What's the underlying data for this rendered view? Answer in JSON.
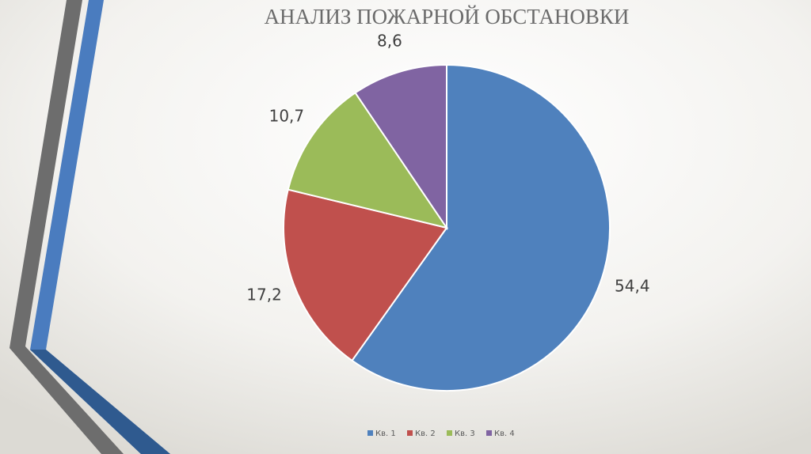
{
  "chart_data": {
    "type": "pie",
    "title": "АНАЛИЗ ПОЖАРНОЙ ОБСТАНОВКИ",
    "categories": [
      "Кв. 1",
      "Кв. 2",
      "Кв. 3",
      "Кв. 4"
    ],
    "values": [
      54.4,
      17.2,
      10.7,
      8.6
    ],
    "value_labels": [
      "54,4",
      "17,2",
      "10,7",
      "8,6"
    ],
    "colors": [
      "#4f81bd",
      "#c0504d",
      "#9bbb59",
      "#8064a2"
    ],
    "legend": "bottom"
  }
}
